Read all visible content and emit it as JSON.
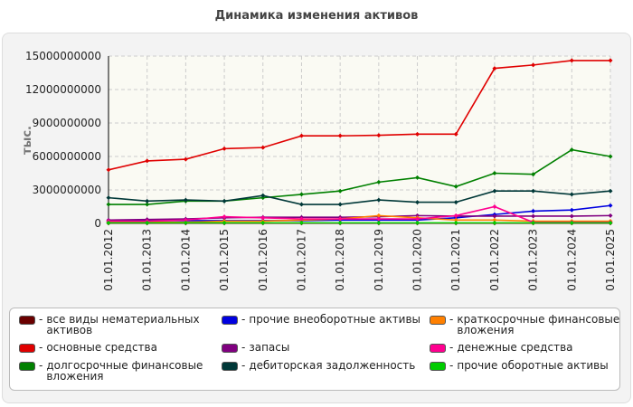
{
  "chart_data": {
    "type": "line",
    "title": "Динамика изменения активов",
    "y_label": "тыс.",
    "categories": [
      "01.01.2012",
      "01.01.2013",
      "01.01.2014",
      "01.01.2015",
      "01.01.2016",
      "01.01.2017",
      "01.01.2018",
      "01.01.2019",
      "01.01.2020",
      "01.01.2021",
      "01.01.2022",
      "01.01.2023",
      "01.01.2024",
      "01.01.2025"
    ],
    "ylim": [
      0,
      15000000000
    ],
    "yticks": [
      0,
      3000000000,
      6000000000,
      9000000000,
      12000000000,
      15000000000
    ],
    "grid": true,
    "series": [
      {
        "name": "все виды нематериальных активов",
        "color": "#6a0000",
        "values": [
          20000000,
          20000000,
          20000000,
          20000000,
          20000000,
          20000000,
          20000000,
          20000000,
          20000000,
          20000000,
          20000000,
          20000000,
          20000000,
          20000000
        ]
      },
      {
        "name": "основные средства",
        "color": "#e00000",
        "values": [
          4800000000,
          5600000000,
          5750000000,
          6700000000,
          6800000000,
          7850000000,
          7850000000,
          7900000000,
          8000000000,
          8000000000,
          13900000000,
          14200000000,
          14600000000,
          14600000000
        ]
      },
      {
        "name": "долгосрочные финансовые вложения",
        "color": "#008000",
        "values": [
          1700000000,
          1700000000,
          2000000000,
          2000000000,
          2300000000,
          2600000000,
          2900000000,
          3700000000,
          4100000000,
          3300000000,
          4500000000,
          4400000000,
          6600000000,
          6000000000
        ]
      },
      {
        "name": "прочие внеоборотные активы",
        "color": "#0000e0",
        "values": [
          200000000,
          250000000,
          250000000,
          250000000,
          250000000,
          250000000,
          300000000,
          300000000,
          300000000,
          500000000,
          800000000,
          1100000000,
          1200000000,
          1600000000
        ]
      },
      {
        "name": "запасы",
        "color": "#800080",
        "values": [
          300000000,
          350000000,
          400000000,
          500000000,
          550000000,
          550000000,
          550000000,
          600000000,
          700000000,
          650000000,
          650000000,
          650000000,
          650000000,
          700000000
        ]
      },
      {
        "name": "дебиторская задолженность",
        "color": "#003838",
        "values": [
          2300000000,
          2000000000,
          2100000000,
          2000000000,
          2500000000,
          1700000000,
          1700000000,
          2100000000,
          1900000000,
          1900000000,
          2900000000,
          2900000000,
          2600000000,
          2900000000
        ]
      },
      {
        "name": "краткосрочные финансовые вложения",
        "color": "#ff8000",
        "values": [
          100000000,
          100000000,
          100000000,
          200000000,
          200000000,
          300000000,
          400000000,
          700000000,
          500000000,
          300000000,
          300000000,
          200000000,
          200000000,
          200000000
        ]
      },
      {
        "name": "денежные средства",
        "color": "#ff0090",
        "values": [
          200000000,
          200000000,
          300000000,
          600000000,
          500000000,
          400000000,
          400000000,
          400000000,
          400000000,
          700000000,
          1500000000,
          100000000,
          100000000,
          100000000
        ]
      },
      {
        "name": "прочие оборотные активы",
        "color": "#00cc00",
        "values": [
          50000000,
          50000000,
          50000000,
          50000000,
          50000000,
          50000000,
          50000000,
          50000000,
          50000000,
          50000000,
          50000000,
          50000000,
          50000000,
          50000000
        ]
      }
    ]
  }
}
